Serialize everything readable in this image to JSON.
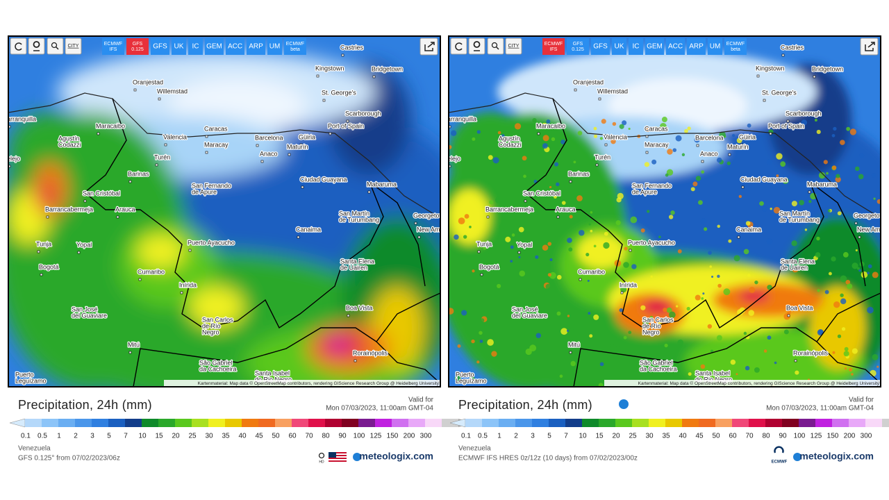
{
  "cities": [
    {
      "lines": [
        "Castries"
      ]
    },
    {
      "lines": [
        "Kingstown"
      ]
    },
    {
      "lines": [
        "Bridgetown"
      ]
    },
    {
      "lines": [
        "Oranjestad"
      ]
    },
    {
      "lines": [
        "Willemstad"
      ]
    },
    {
      "lines": [
        "St. George's"
      ]
    },
    {
      "lines": [
        "Scarborough"
      ]
    },
    {
      "lines": [
        "arranquilla"
      ]
    },
    {
      "lines": [
        "Maracaibo"
      ]
    },
    {
      "lines": [
        "Port of Spain"
      ]
    },
    {
      "lines": [
        "Caracas"
      ]
    },
    {
      "lines": [
        "Agustín",
        "Codazzi"
      ]
    },
    {
      "lines": [
        "Valencia"
      ]
    },
    {
      "lines": [
        "Barcelona"
      ]
    },
    {
      "lines": [
        "Güiria"
      ]
    },
    {
      "lines": [
        "Maracay"
      ]
    },
    {
      "lines": [
        "Maturín"
      ]
    },
    {
      "lines": [
        "Anaco"
      ]
    },
    {
      "lines": [
        "Turén"
      ]
    },
    {
      "lines": [
        "elejo"
      ]
    },
    {
      "lines": [
        "Barinas"
      ]
    },
    {
      "lines": [
        "Ciudad Guayana"
      ]
    },
    {
      "lines": [
        "Mabaruma"
      ]
    },
    {
      "lines": [
        "San Fernando",
        "de Apure"
      ]
    },
    {
      "lines": [
        "San Cristóbal"
      ]
    },
    {
      "lines": [
        "Arauca"
      ]
    },
    {
      "lines": [
        "Barrancabermeja"
      ]
    },
    {
      "lines": [
        "San Martín",
        "de Turumbang"
      ]
    },
    {
      "lines": [
        "Georgetown"
      ]
    },
    {
      "lines": [
        "New Amsterdam"
      ]
    },
    {
      "lines": [
        "Canaima"
      ]
    },
    {
      "lines": [
        "Puerto Ayacucho"
      ]
    },
    {
      "lines": [
        "Tunja"
      ]
    },
    {
      "lines": [
        "Yopal"
      ]
    },
    {
      "lines": [
        "Santa Elena",
        "de Uairen"
      ]
    },
    {
      "lines": [
        "Bogotá"
      ]
    },
    {
      "lines": [
        "Cumaribo"
      ]
    },
    {
      "lines": [
        "Inírida"
      ]
    },
    {
      "lines": [
        "Boa Vista"
      ]
    },
    {
      "lines": [
        "San José",
        "del Guaviare"
      ]
    },
    {
      "lines": [
        "San Carlos",
        "de Río",
        "Negro"
      ]
    },
    {
      "lines": [
        "Rorainópolis"
      ]
    },
    {
      "lines": [
        "Mitú"
      ]
    },
    {
      "lines": [
        "São Gabriel",
        "da Cachoeira"
      ]
    },
    {
      "lines": [
        "Santa Isabel",
        "do Rio Negro"
      ]
    },
    {
      "lines": [
        "Puerto",
        "Leguízamo"
      ]
    }
  ],
  "attribution": "Kartenmaterial: Map data © OpenStreetMap contributors, rendering GIScience Research Group @ Heidelberg University",
  "city_tool": "CITY",
  "legend": {
    "colors": [
      "#d6ebfc",
      "#b4d8fa",
      "#8cc4f8",
      "#6aaef2",
      "#4a96ea",
      "#2f7fe0",
      "#1a5fc0",
      "#123d8a",
      "#0f8a2a",
      "#2aa82a",
      "#5ac81e",
      "#a8e020",
      "#f0f020",
      "#e8c800",
      "#f07a10",
      "#f06a20",
      "#f8a060",
      "#f04878",
      "#e0104a",
      "#b00030",
      "#800020",
      "#7a1a90",
      "#c020e0",
      "#d070f0",
      "#e8a8f8",
      "#f8d8f8",
      "#d0d0d0",
      "#a8a8a8"
    ],
    "labels": [
      "0.1",
      "0.5",
      "1",
      "2",
      "3",
      "5",
      "7",
      "10",
      "15",
      "20",
      "25",
      "30",
      "35",
      "40",
      "45",
      "50",
      "60",
      "70",
      "80",
      "90",
      "100",
      "125",
      "150",
      "200",
      "300"
    ]
  },
  "panels": [
    {
      "buttons": [
        {
          "lines": [
            "ECMWF",
            "IFS"
          ],
          "active": false
        },
        {
          "lines": [
            "GFS",
            "0.125"
          ],
          "active": true
        },
        {
          "lines": [
            "GFS"
          ],
          "active": false
        },
        {
          "lines": [
            "UK"
          ],
          "active": false
        },
        {
          "lines": [
            "IC"
          ],
          "active": false
        },
        {
          "lines": [
            "GEM"
          ],
          "active": false
        },
        {
          "lines": [
            "ACC"
          ],
          "active": false
        },
        {
          "lines": [
            "ARP"
          ],
          "active": false
        },
        {
          "lines": [
            "UM"
          ],
          "active": false
        },
        {
          "lines": [
            "ECMWF",
            "beta"
          ],
          "active": false
        }
      ],
      "title": "Precipitation, 24h (mm)",
      "info_icon": false,
      "valid_label": "Valid for",
      "valid_time": "Mon 07/03/2023, 11:00am GMT-04",
      "region": "Venezuela",
      "source": "GFS 0.125° from 07/02/2023/06z",
      "badge": "HD",
      "flag": true,
      "brand": "meteologix.com"
    },
    {
      "buttons": [
        {
          "lines": [
            "ECMWF",
            "IFS"
          ],
          "active": true
        },
        {
          "lines": [
            "GFS",
            "0.125"
          ],
          "active": false
        },
        {
          "lines": [
            "GFS"
          ],
          "active": false
        },
        {
          "lines": [
            "UK"
          ],
          "active": false
        },
        {
          "lines": [
            "IC"
          ],
          "active": false
        },
        {
          "lines": [
            "GEM"
          ],
          "active": false
        },
        {
          "lines": [
            "ACC"
          ],
          "active": false
        },
        {
          "lines": [
            "ARP"
          ],
          "active": false
        },
        {
          "lines": [
            "UM"
          ],
          "active": false
        },
        {
          "lines": [
            "ECMWF",
            "beta"
          ],
          "active": false
        }
      ],
      "title": "Precipitation, 24h (mm)",
      "info_icon": true,
      "valid_label": "Valid for",
      "valid_time": "Mon 07/03/2023, 11:00am GMT-04",
      "region": "Venezuela",
      "source": "ECMWF IFS HRES 0z/12z (10 days) from 07/02/2023/00z",
      "badge": "ECMWF",
      "flag": false,
      "brand": "meteologix.com"
    }
  ]
}
